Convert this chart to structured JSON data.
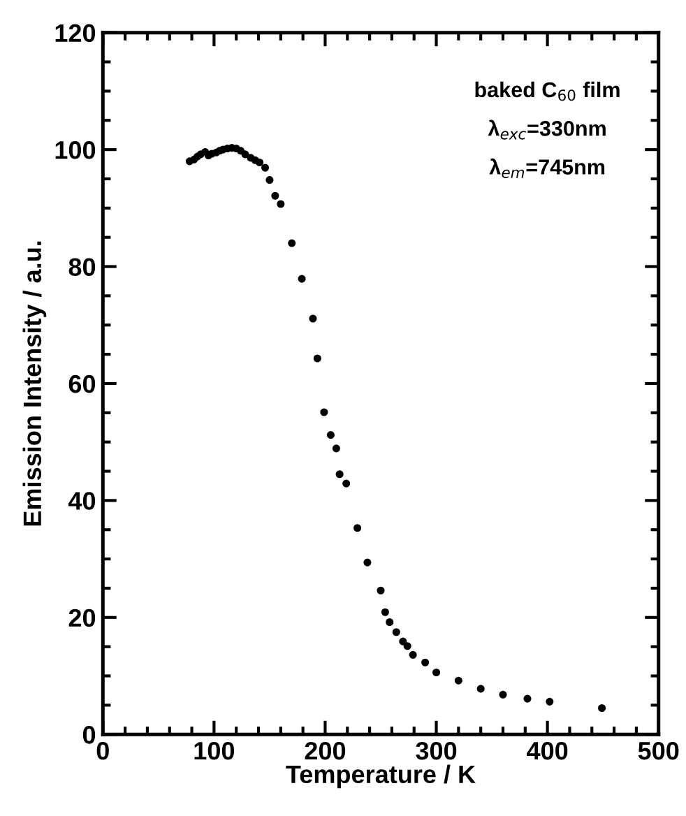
{
  "chart_data": {
    "type": "scatter",
    "xlabel": "Temperature / K",
    "ylabel": "Emission Intensity / a.u.",
    "annotations": [
      "baked C$_{60}$ film",
      "λ$_{exc}$=330nm",
      "λ$_{em}$=745nm"
    ],
    "x": [
      78,
      82,
      85,
      88,
      92,
      95,
      98,
      102,
      105,
      108,
      112,
      116,
      120,
      124,
      128,
      133,
      137,
      141,
      146,
      150,
      155,
      160,
      170,
      179,
      189,
      193,
      199,
      205,
      210,
      213,
      219,
      229,
      238,
      250,
      254,
      258,
      264,
      270,
      274,
      279,
      290,
      300,
      320,
      340,
      360,
      382,
      402,
      449
    ],
    "series": [
      {
        "color": "#000000",
        "values": [
          98.0,
          98.3,
          98.8,
          99.2,
          99.6,
          99.0,
          99.3,
          99.5,
          99.8,
          100.0,
          100.2,
          100.3,
          100.2,
          99.8,
          99.2,
          98.6,
          98.2,
          97.8,
          96.9,
          94.8,
          92.1,
          90.7,
          84.0,
          77.9,
          71.1,
          64.3,
          55.1,
          51.2,
          48.9,
          44.5,
          42.9,
          35.3,
          29.4,
          24.6,
          20.9,
          19.2,
          17.5,
          15.9,
          15.1,
          13.6,
          12.3,
          10.6,
          9.2,
          7.8,
          6.8,
          6.1,
          5.6,
          4.5
        ]
      }
    ],
    "xlim": [
      0,
      500
    ],
    "xticks": [
      0,
      100,
      200,
      300,
      400,
      500
    ],
    "ylim": [
      0,
      120
    ],
    "yticks": [
      0,
      20,
      40,
      60,
      80,
      100,
      120
    ],
    "marker": "circle",
    "grid": false,
    "legend": false
  }
}
